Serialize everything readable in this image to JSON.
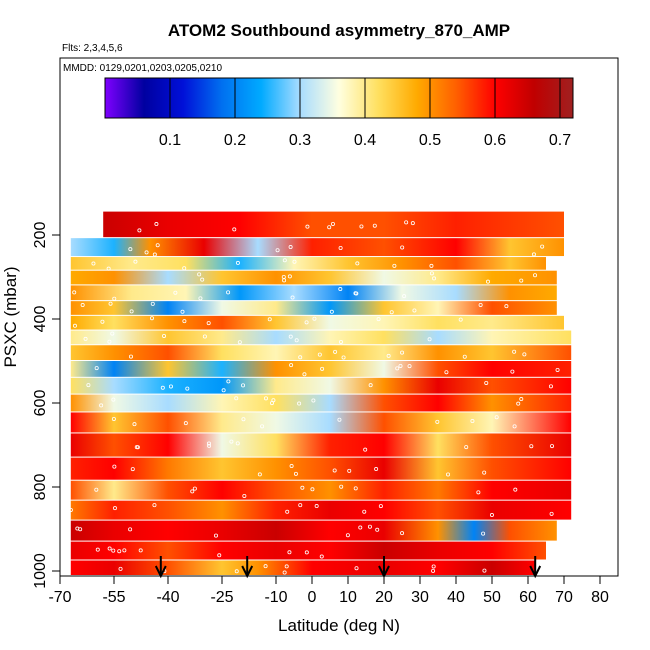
{
  "chart_data": {
    "type": "heatmap",
    "title": "ATOM2 Southbound asymmetry_870_AMP",
    "flights_label": "Flts: 2,3,4,5,6",
    "dates_label": "MMDD: 0129,0201,0203,0205,0210",
    "xlabel": "Latitude (deg N)",
    "ylabel": "PSXC (mbar)",
    "xlim": [
      -70,
      85
    ],
    "xticks": [
      -70,
      -55,
      -40,
      -25,
      -10,
      0,
      10,
      20,
      30,
      40,
      50,
      60,
      70,
      80
    ],
    "ylim": [
      1000,
      130
    ],
    "yticks": [
      200,
      400,
      600,
      800,
      1000
    ],
    "colorbar": {
      "range": [
        0,
        0.72
      ],
      "ticks": [
        0.1,
        0.2,
        0.3,
        0.4,
        0.5,
        0.6,
        0.7
      ],
      "colors": [
        "#7f00ff",
        "#0000a0",
        "#0010d8",
        "#0070f0",
        "#00aaff",
        "#a8dcff",
        "#ffffe0",
        "#ffe060",
        "#ffaa00",
        "#ff6000",
        "#ff0000",
        "#c00000",
        "#a02020"
      ]
    },
    "arrows_lat": [
      -42,
      -18,
      20,
      62
    ],
    "levels": [
      {
        "pressure": 180,
        "lat_range": [
          -58,
          70
        ],
        "stops": [
          [
            -58,
            0.65
          ],
          [
            -40,
            0.62
          ],
          [
            -20,
            0.6
          ],
          [
            0,
            0.55
          ],
          [
            20,
            0.55
          ],
          [
            40,
            0.58
          ],
          [
            70,
            0.55
          ]
        ]
      },
      {
        "pressure": 235,
        "lat_range": [
          -67,
          70
        ],
        "stops": [
          [
            -67,
            0.3
          ],
          [
            -55,
            0.25
          ],
          [
            -45,
            0.5
          ],
          [
            -30,
            0.62
          ],
          [
            -15,
            0.3
          ],
          [
            0,
            0.58
          ],
          [
            20,
            0.55
          ],
          [
            40,
            0.6
          ],
          [
            55,
            0.45
          ],
          [
            70,
            0.5
          ]
        ]
      },
      {
        "pressure": 270,
        "lat_range": [
          -67,
          65
        ],
        "stops": [
          [
            -67,
            0.45
          ],
          [
            -50,
            0.4
          ],
          [
            -35,
            0.42
          ],
          [
            -20,
            0.25
          ],
          [
            -5,
            0.38
          ],
          [
            10,
            0.45
          ],
          [
            25,
            0.5
          ],
          [
            40,
            0.55
          ],
          [
            55,
            0.45
          ],
          [
            65,
            0.5
          ]
        ]
      },
      {
        "pressure": 300,
        "lat_range": [
          -67,
          68
        ],
        "stops": [
          [
            -67,
            0.48
          ],
          [
            -55,
            0.5
          ],
          [
            -40,
            0.3
          ],
          [
            -25,
            0.45
          ],
          [
            -10,
            0.5
          ],
          [
            5,
            0.45
          ],
          [
            20,
            0.35
          ],
          [
            35,
            0.4
          ],
          [
            50,
            0.48
          ],
          [
            68,
            0.5
          ]
        ]
      },
      {
        "pressure": 340,
        "lat_range": [
          -67,
          68
        ],
        "stops": [
          [
            -67,
            0.5
          ],
          [
            -50,
            0.4
          ],
          [
            -35,
            0.38
          ],
          [
            -20,
            0.22
          ],
          [
            -5,
            0.3
          ],
          [
            10,
            0.2
          ],
          [
            25,
            0.35
          ],
          [
            40,
            0.3
          ],
          [
            55,
            0.5
          ],
          [
            68,
            0.48
          ]
        ]
      },
      {
        "pressure": 375,
        "lat_range": [
          -67,
          68
        ],
        "stops": [
          [
            -67,
            0.5
          ],
          [
            -55,
            0.45
          ],
          [
            -40,
            0.2
          ],
          [
            -25,
            0.35
          ],
          [
            -10,
            0.4
          ],
          [
            5,
            0.22
          ],
          [
            20,
            0.45
          ],
          [
            35,
            0.38
          ],
          [
            50,
            0.55
          ],
          [
            68,
            0.5
          ]
        ]
      },
      {
        "pressure": 410,
        "lat_range": [
          -67,
          70
        ],
        "stops": [
          [
            -67,
            0.48
          ],
          [
            -55,
            0.42
          ],
          [
            -40,
            0.5
          ],
          [
            -25,
            0.55
          ],
          [
            -10,
            0.45
          ],
          [
            5,
            0.35
          ],
          [
            20,
            0.38
          ],
          [
            35,
            0.42
          ],
          [
            50,
            0.4
          ],
          [
            70,
            0.45
          ]
        ]
      },
      {
        "pressure": 445,
        "lat_range": [
          -67,
          72
        ],
        "stops": [
          [
            -67,
            0.4
          ],
          [
            -55,
            0.35
          ],
          [
            -40,
            0.45
          ],
          [
            -25,
            0.4
          ],
          [
            -10,
            0.3
          ],
          [
            5,
            0.38
          ],
          [
            20,
            0.42
          ],
          [
            35,
            0.3
          ],
          [
            50,
            0.38
          ],
          [
            72,
            0.42
          ]
        ]
      },
      {
        "pressure": 480,
        "lat_range": [
          -67,
          72
        ],
        "stops": [
          [
            -67,
            0.45
          ],
          [
            -55,
            0.5
          ],
          [
            -40,
            0.55
          ],
          [
            -25,
            0.42
          ],
          [
            -10,
            0.38
          ],
          [
            5,
            0.45
          ],
          [
            20,
            0.4
          ],
          [
            35,
            0.5
          ],
          [
            50,
            0.45
          ],
          [
            72,
            0.55
          ]
        ]
      },
      {
        "pressure": 520,
        "lat_range": [
          -67,
          72
        ],
        "stops": [
          [
            -67,
            0.4
          ],
          [
            -55,
            0.2
          ],
          [
            -40,
            0.45
          ],
          [
            -25,
            0.25
          ],
          [
            -10,
            0.5
          ],
          [
            5,
            0.45
          ],
          [
            20,
            0.35
          ],
          [
            35,
            0.55
          ],
          [
            50,
            0.6
          ],
          [
            72,
            0.58
          ]
        ]
      },
      {
        "pressure": 560,
        "lat_range": [
          -67,
          72
        ],
        "stops": [
          [
            -67,
            0.42
          ],
          [
            -55,
            0.3
          ],
          [
            -40,
            0.25
          ],
          [
            -25,
            0.22
          ],
          [
            -10,
            0.4
          ],
          [
            5,
            0.35
          ],
          [
            20,
            0.5
          ],
          [
            35,
            0.62
          ],
          [
            50,
            0.55
          ],
          [
            72,
            0.6
          ]
        ]
      },
      {
        "pressure": 600,
        "lat_range": [
          -67,
          72
        ],
        "stops": [
          [
            -67,
            0.5
          ],
          [
            -55,
            0.35
          ],
          [
            -40,
            0.3
          ],
          [
            -25,
            0.38
          ],
          [
            -10,
            0.42
          ],
          [
            5,
            0.3
          ],
          [
            20,
            0.55
          ],
          [
            35,
            0.6
          ],
          [
            50,
            0.5
          ],
          [
            72,
            0.58
          ]
        ]
      },
      {
        "pressure": 645,
        "lat_range": [
          -67,
          72
        ],
        "stops": [
          [
            -67,
            0.6
          ],
          [
            -55,
            0.45
          ],
          [
            -40,
            0.55
          ],
          [
            -25,
            0.4
          ],
          [
            -10,
            0.35
          ],
          [
            5,
            0.3
          ],
          [
            20,
            0.55
          ],
          [
            35,
            0.45
          ],
          [
            50,
            0.38
          ],
          [
            72,
            0.6
          ]
        ]
      },
      {
        "pressure": 700,
        "lat_range": [
          -67,
          72
        ],
        "stops": [
          [
            -67,
            0.62
          ],
          [
            -55,
            0.55
          ],
          [
            -40,
            0.6
          ],
          [
            -25,
            0.35
          ],
          [
            -10,
            0.42
          ],
          [
            5,
            0.58
          ],
          [
            20,
            0.6
          ],
          [
            35,
            0.42
          ],
          [
            50,
            0.55
          ],
          [
            72,
            0.62
          ]
        ]
      },
      {
        "pressure": 760,
        "lat_range": [
          -67,
          72
        ],
        "stops": [
          [
            -67,
            0.58
          ],
          [
            -55,
            0.6
          ],
          [
            -40,
            0.52
          ],
          [
            -25,
            0.45
          ],
          [
            -10,
            0.5
          ],
          [
            5,
            0.55
          ],
          [
            20,
            0.62
          ],
          [
            35,
            0.45
          ],
          [
            50,
            0.55
          ],
          [
            72,
            0.6
          ]
        ]
      },
      {
        "pressure": 810,
        "lat_range": [
          -67,
          72
        ],
        "stops": [
          [
            -67,
            0.55
          ],
          [
            -55,
            0.4
          ],
          [
            -40,
            0.55
          ],
          [
            -25,
            0.6
          ],
          [
            -10,
            0.55
          ],
          [
            5,
            0.5
          ],
          [
            20,
            0.58
          ],
          [
            35,
            0.52
          ],
          [
            50,
            0.6
          ],
          [
            72,
            0.62
          ]
        ]
      },
      {
        "pressure": 855,
        "lat_range": [
          -67,
          72
        ],
        "stops": [
          [
            -67,
            0.52
          ],
          [
            -55,
            0.58
          ],
          [
            -40,
            0.55
          ],
          [
            -25,
            0.5
          ],
          [
            -10,
            0.58
          ],
          [
            5,
            0.62
          ],
          [
            20,
            0.6
          ],
          [
            35,
            0.55
          ],
          [
            50,
            0.62
          ],
          [
            72,
            0.6
          ]
        ]
      },
      {
        "pressure": 905,
        "lat_range": [
          -67,
          68
        ],
        "stops": [
          [
            -67,
            0.65
          ],
          [
            -55,
            0.62
          ],
          [
            -40,
            0.6
          ],
          [
            -25,
            0.62
          ],
          [
            -10,
            0.65
          ],
          [
            5,
            0.6
          ],
          [
            20,
            0.62
          ],
          [
            35,
            0.5
          ],
          [
            45,
            0.2
          ],
          [
            55,
            0.55
          ],
          [
            68,
            0.5
          ]
        ]
      },
      {
        "pressure": 955,
        "lat_range": [
          -67,
          65
        ],
        "stops": [
          [
            -67,
            0.62
          ],
          [
            -55,
            0.6
          ],
          [
            -40,
            0.55
          ],
          [
            -25,
            0.6
          ],
          [
            -10,
            0.62
          ],
          [
            5,
            0.6
          ],
          [
            20,
            0.65
          ],
          [
            35,
            0.62
          ],
          [
            50,
            0.6
          ],
          [
            65,
            0.55
          ]
        ]
      },
      {
        "pressure": 995,
        "lat_range": [
          -67,
          62
        ],
        "stops": [
          [
            -67,
            0.6
          ],
          [
            -55,
            0.62
          ],
          [
            -40,
            0.55
          ],
          [
            -25,
            0.45
          ],
          [
            -15,
            0.5
          ],
          [
            0,
            0.6
          ],
          [
            20,
            0.62
          ],
          [
            35,
            0.6
          ],
          [
            50,
            0.65
          ],
          [
            62,
            0.6
          ]
        ]
      }
    ]
  }
}
